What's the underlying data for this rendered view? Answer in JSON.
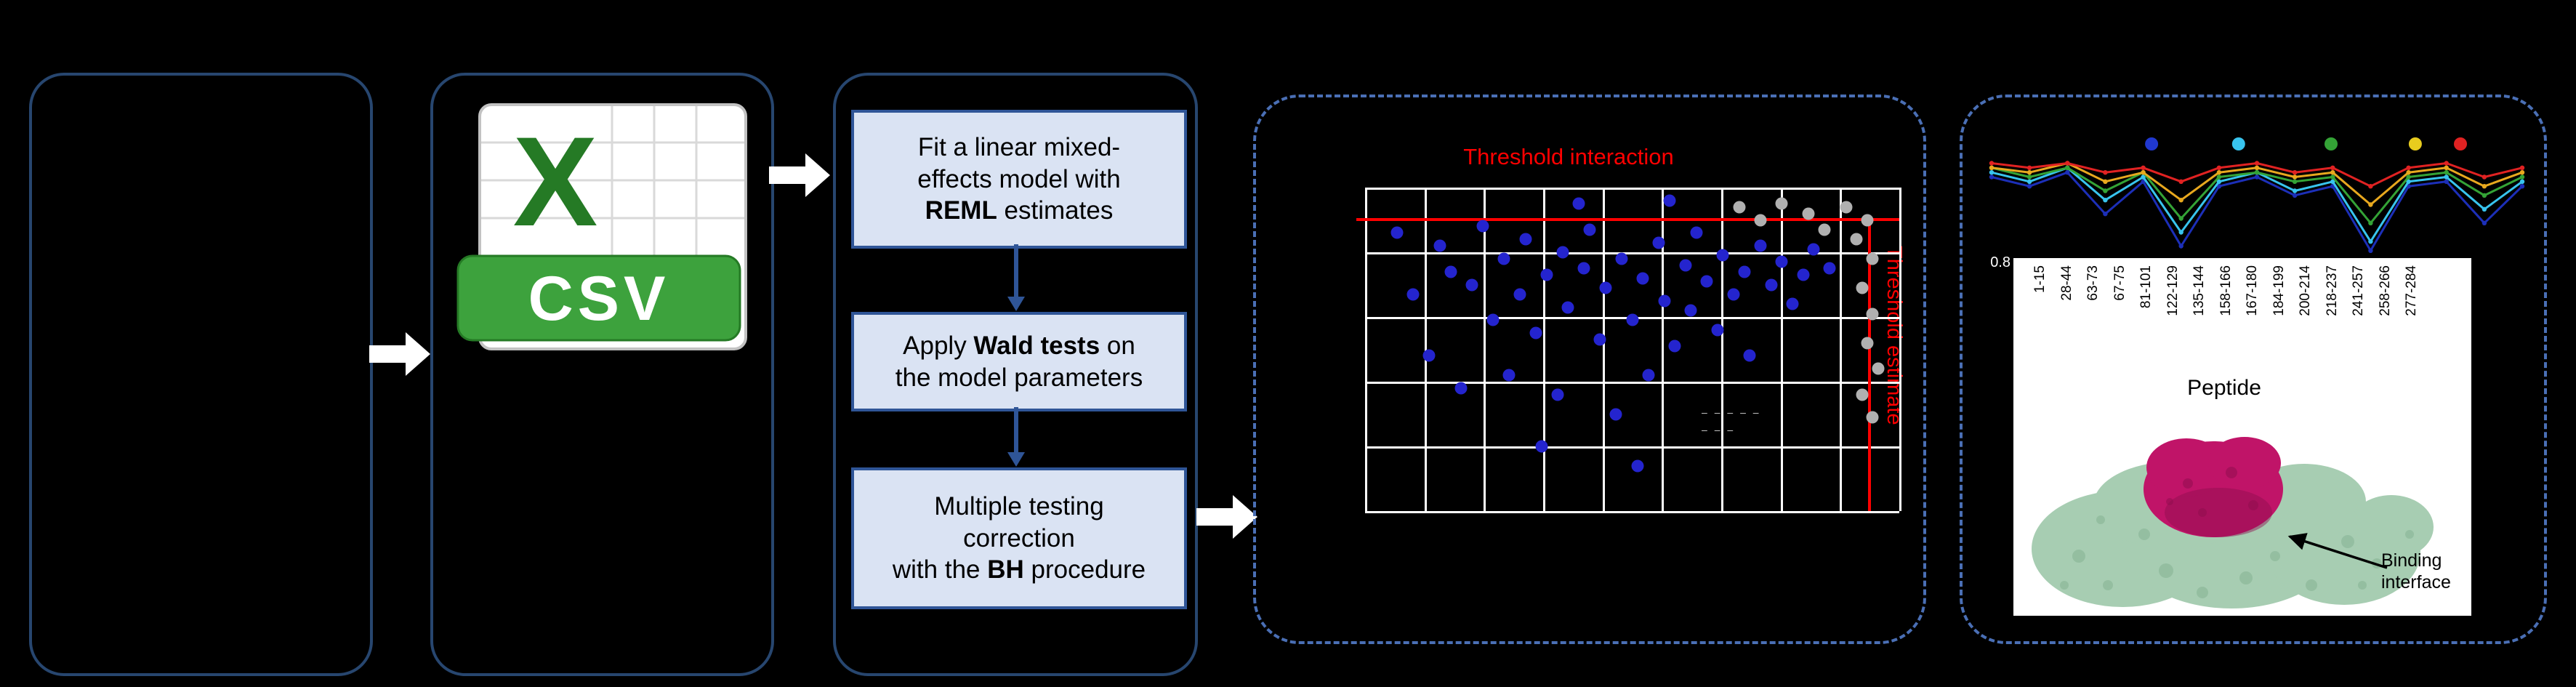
{
  "colors": {
    "background": "#000000",
    "panel_border": "#27466F",
    "dashed_border": "#4A6FB5",
    "step_fill": "#DAE3F3",
    "step_border": "#2F5597",
    "connector": "#2F5597",
    "flow_arrow": "#FFFFFF",
    "threshold_red": "#FF0000",
    "grid_white": "#FFFFFF",
    "scatter_dot_blue": "#2424CE",
    "scatter_dot_gray": "#B0B0B0",
    "csv_green": "#3DA23D",
    "csv_green_dark": "#257A25",
    "protein_green": "#A7CDB2",
    "protein_green_dark": "#85B393",
    "protein_magenta": "#C01468",
    "protein_magenta_dark": "#8E0E4E"
  },
  "csv_icon": {
    "letter": "X",
    "label": "CSV"
  },
  "steps": [
    {
      "pre": "Fit a linear mixed-\neffects model with\n",
      "bold": "REML",
      "post": " estimates"
    },
    {
      "pre": "Apply ",
      "bold": "Wald tests",
      "post": " on\nthe model parameters"
    },
    {
      "pre": "Multiple testing\ncorrection\nwith the ",
      "bold": "BH",
      "post": " procedure"
    }
  ],
  "protein": {
    "binding_label": "Binding\ninterface"
  },
  "chart_data": [
    {
      "type": "scatter",
      "title": "Threshold interaction",
      "side_label": "Threshold estimate",
      "grid": {
        "cols": 9,
        "rows": 5
      },
      "thresholds": {
        "horizontal_frac": 0.095,
        "vertical_frac": 0.942
      },
      "note_lines": [
        "‒ ‒ ‒ ‒ ‒",
        "‒ ‒ ‒"
      ],
      "series": [
        {
          "name": "significant-points",
          "color": "#2424CE",
          "points": [
            [
              0.06,
              0.14
            ],
            [
              0.09,
              0.33
            ],
            [
              0.12,
              0.52
            ],
            [
              0.14,
              0.18
            ],
            [
              0.16,
              0.26
            ],
            [
              0.18,
              0.62
            ],
            [
              0.2,
              0.3
            ],
            [
              0.22,
              0.12
            ],
            [
              0.24,
              0.41
            ],
            [
              0.26,
              0.22
            ],
            [
              0.27,
              0.58
            ],
            [
              0.29,
              0.33
            ],
            [
              0.3,
              0.16
            ],
            [
              0.32,
              0.45
            ],
            [
              0.33,
              0.8
            ],
            [
              0.34,
              0.27
            ],
            [
              0.36,
              0.64
            ],
            [
              0.37,
              0.2
            ],
            [
              0.38,
              0.37
            ],
            [
              0.4,
              0.05
            ],
            [
              0.41,
              0.25
            ],
            [
              0.42,
              0.13
            ],
            [
              0.44,
              0.47
            ],
            [
              0.45,
              0.31
            ],
            [
              0.47,
              0.7
            ],
            [
              0.48,
              0.22
            ],
            [
              0.5,
              0.41
            ],
            [
              0.51,
              0.86
            ],
            [
              0.52,
              0.28
            ],
            [
              0.53,
              0.58
            ],
            [
              0.55,
              0.17
            ],
            [
              0.56,
              0.35
            ],
            [
              0.57,
              0.04
            ],
            [
              0.58,
              0.49
            ],
            [
              0.6,
              0.24
            ],
            [
              0.61,
              0.38
            ],
            [
              0.62,
              0.14
            ],
            [
              0.64,
              0.29
            ],
            [
              0.66,
              0.44
            ],
            [
              0.67,
              0.21
            ],
            [
              0.69,
              0.33
            ],
            [
              0.71,
              0.26
            ],
            [
              0.72,
              0.52
            ],
            [
              0.74,
              0.18
            ],
            [
              0.76,
              0.3
            ],
            [
              0.78,
              0.23
            ],
            [
              0.8,
              0.36
            ],
            [
              0.82,
              0.27
            ],
            [
              0.84,
              0.19
            ],
            [
              0.87,
              0.25
            ]
          ]
        },
        {
          "name": "nonsignificant-points",
          "color": "#B0B0B0",
          "points": [
            [
              0.7,
              0.06
            ],
            [
              0.74,
              0.1
            ],
            [
              0.78,
              0.05
            ],
            [
              0.83,
              0.08
            ],
            [
              0.86,
              0.13
            ],
            [
              0.9,
              0.06
            ],
            [
              0.92,
              0.16
            ],
            [
              0.94,
              0.1
            ],
            [
              0.95,
              0.22
            ],
            [
              0.93,
              0.31
            ],
            [
              0.95,
              0.39
            ],
            [
              0.94,
              0.48
            ],
            [
              0.96,
              0.56
            ],
            [
              0.93,
              0.64
            ],
            [
              0.95,
              0.71
            ]
          ]
        }
      ]
    },
    {
      "type": "line",
      "xlabel": "Peptide",
      "ytick_label": "0.8",
      "ylim": [
        0.795,
        1.005
      ],
      "categories": [
        "1-15",
        "28-44",
        "63-73",
        "67-75",
        "81-101",
        "122-129",
        "135-144",
        "158-166",
        "167-180",
        "184-199",
        "200-214",
        "218-237",
        "241-257",
        "258-266",
        "277-284"
      ],
      "legend_dots": [
        {
          "name": "timepoint-1",
          "color": "#2038D0",
          "x": 0.305
        },
        {
          "name": "timepoint-2",
          "color": "#38C4EE",
          "x": 0.465
        },
        {
          "name": "timepoint-3",
          "color": "#34A336",
          "x": 0.635
        },
        {
          "name": "timepoint-4",
          "color": "#E8CC1E",
          "x": 0.79
        },
        {
          "name": "timepoint-5",
          "color": "#E02222",
          "x": 0.873
        }
      ],
      "series": [
        {
          "name": "series-navy",
          "color": "#1C2FB8",
          "values": [
            0.96,
            0.94,
            0.97,
            0.88,
            0.95,
            0.81,
            0.94,
            0.96,
            0.92,
            0.94,
            0.8,
            0.94,
            0.95,
            0.86,
            0.94
          ]
        },
        {
          "name": "series-cyan",
          "color": "#38C4EE",
          "values": [
            0.97,
            0.95,
            0.98,
            0.91,
            0.96,
            0.84,
            0.95,
            0.97,
            0.93,
            0.95,
            0.82,
            0.95,
            0.96,
            0.89,
            0.95
          ]
        },
        {
          "name": "series-green",
          "color": "#34A336",
          "values": [
            0.98,
            0.96,
            0.98,
            0.93,
            0.97,
            0.87,
            0.96,
            0.97,
            0.95,
            0.96,
            0.86,
            0.96,
            0.97,
            0.92,
            0.96
          ]
        },
        {
          "name": "series-orange",
          "color": "#E8A81E",
          "values": [
            0.98,
            0.97,
            0.99,
            0.95,
            0.97,
            0.91,
            0.97,
            0.98,
            0.96,
            0.97,
            0.9,
            0.97,
            0.98,
            0.94,
            0.97
          ]
        },
        {
          "name": "series-red",
          "color": "#E02222",
          "values": [
            0.99,
            0.98,
            0.99,
            0.97,
            0.98,
            0.95,
            0.98,
            0.99,
            0.97,
            0.98,
            0.94,
            0.98,
            0.99,
            0.96,
            0.98
          ]
        }
      ]
    }
  ]
}
